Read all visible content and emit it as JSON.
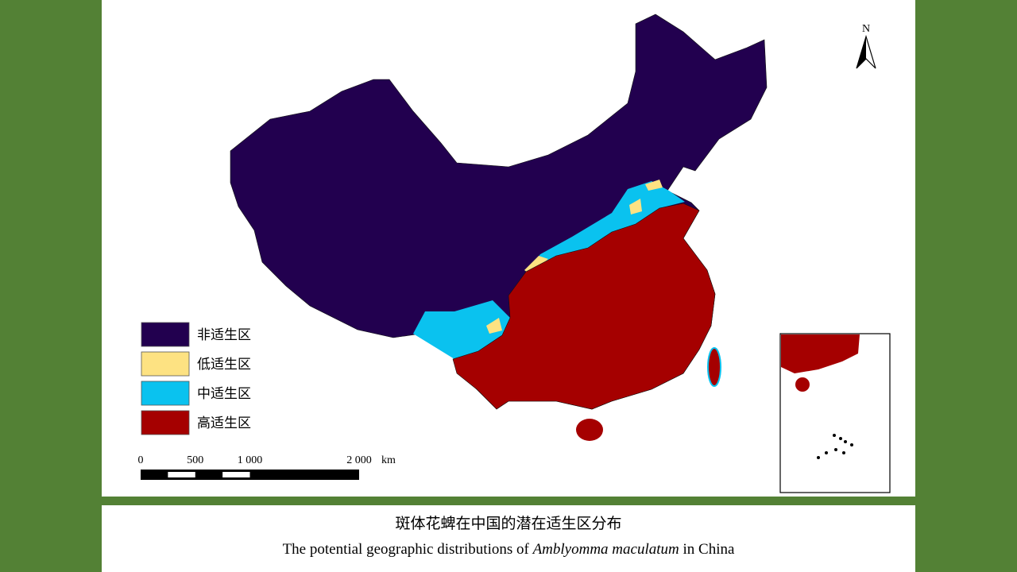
{
  "map": {
    "north_label": "N",
    "legend": [
      {
        "label": "非适生区",
        "color": "#22004f"
      },
      {
        "label": "低适生区",
        "color": "#fde282"
      },
      {
        "label": "中适生区",
        "color": "#0ac2ef"
      },
      {
        "label": "高适生区",
        "color": "#a50000"
      }
    ],
    "scale_bar": {
      "ticks": [
        0,
        500,
        {
          "value": 1000,
          "label": "1 000"
        },
        {
          "value": 2000,
          "label": "2 000"
        }
      ],
      "unit": "km"
    }
  },
  "caption": {
    "chinese": "斑体花蜱在中国的潜在适生区分布",
    "english_before": "The potential geographic distributions of",
    "english_species": "Amblyomma maculatum",
    "english_after": "in China"
  }
}
